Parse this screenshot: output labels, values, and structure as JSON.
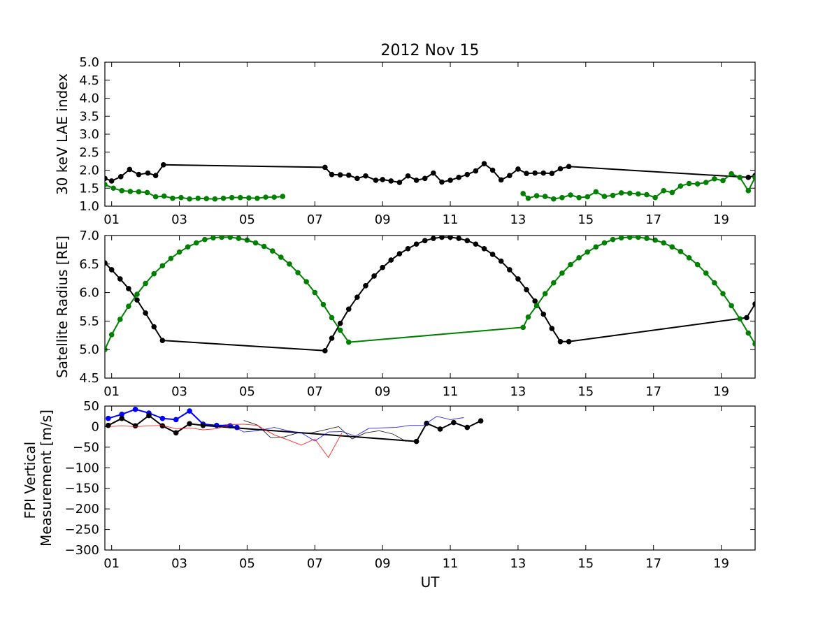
{
  "chart_data": [
    {
      "type": "line",
      "title": "2012 Nov 15",
      "ylabel": "30 keV LAE index",
      "xlabel": "",
      "xlim": [
        0.8,
        20.0
      ],
      "ylim": [
        1.0,
        5.0
      ],
      "yticks": [
        "1.0",
        "1.5",
        "2.0",
        "2.5",
        "3.0",
        "3.5",
        "4.0",
        "4.5",
        "5.0"
      ],
      "xticks": [
        "01",
        "03",
        "05",
        "07",
        "09",
        "11",
        "13",
        "15",
        "17",
        "19"
      ],
      "grid": false,
      "series": [
        {
          "color": "#000000",
          "marker": "circle",
          "x": [
            0.8,
            1.0,
            1.27,
            1.53,
            1.8,
            2.07,
            2.3,
            2.53,
            7.3,
            7.5,
            7.75,
            8.0,
            8.25,
            8.5,
            8.8,
            9.0,
            9.25,
            9.5,
            9.75,
            10.0,
            10.25,
            10.5,
            10.75,
            11.0,
            11.25,
            11.5,
            11.75,
            12.0,
            12.25,
            12.5,
            12.75,
            13.0,
            13.25,
            13.5,
            13.75,
            14.0,
            14.25,
            14.5,
            19.8,
            20.0
          ],
          "y": [
            1.77,
            1.7,
            1.82,
            2.02,
            1.88,
            1.92,
            1.85,
            2.15,
            2.08,
            1.88,
            1.87,
            1.86,
            1.77,
            1.84,
            1.72,
            1.74,
            1.7,
            1.66,
            1.84,
            1.72,
            1.77,
            1.92,
            1.67,
            1.72,
            1.8,
            1.88,
            1.98,
            2.18,
            2.0,
            1.73,
            1.85,
            2.03,
            1.91,
            1.92,
            1.92,
            1.91,
            2.04,
            2.1,
            1.8,
            1.85
          ]
        },
        {
          "color": "#008000",
          "marker": "circle",
          "x": [
            0.8,
            1.05,
            1.3,
            1.55,
            1.8,
            2.05,
            2.3,
            2.55,
            2.8,
            3.05,
            3.3,
            3.55,
            3.8,
            4.05,
            4.3,
            4.55,
            4.8,
            5.05,
            5.3,
            5.55,
            5.8,
            6.05
          ],
          "y": [
            1.6,
            1.5,
            1.43,
            1.41,
            1.4,
            1.38,
            1.26,
            1.28,
            1.22,
            1.24,
            1.2,
            1.22,
            1.21,
            1.2,
            1.22,
            1.24,
            1.24,
            1.23,
            1.22,
            1.25,
            1.25,
            1.27
          ]
        },
        {
          "color": "#008000",
          "marker": "circle",
          "x": [
            13.15,
            13.3,
            13.55,
            13.8,
            14.05,
            14.3,
            14.55,
            14.8,
            15.05,
            15.3,
            15.55,
            15.8,
            16.05,
            16.3,
            16.55,
            16.8,
            17.05,
            17.3,
            17.55,
            17.8,
            18.05,
            18.3,
            18.55,
            18.8,
            19.05,
            19.3,
            19.55,
            19.8,
            20.0
          ],
          "y": [
            1.35,
            1.22,
            1.29,
            1.27,
            1.2,
            1.24,
            1.31,
            1.24,
            1.26,
            1.4,
            1.27,
            1.3,
            1.37,
            1.36,
            1.34,
            1.32,
            1.24,
            1.43,
            1.38,
            1.56,
            1.63,
            1.62,
            1.66,
            1.76,
            1.71,
            1.9,
            1.8,
            1.43,
            1.8
          ]
        }
      ]
    },
    {
      "type": "line",
      "title": "",
      "ylabel": "Satellite Radius [RE]",
      "xlabel": "",
      "xlim": [
        0.8,
        20.0
      ],
      "ylim": [
        4.5,
        7.0
      ],
      "yticks": [
        "4.5",
        "5.0",
        "5.5",
        "6.0",
        "6.5",
        "7.0"
      ],
      "xticks": [
        "01",
        "03",
        "05",
        "07",
        "09",
        "11",
        "13",
        "15",
        "17",
        "19"
      ],
      "grid": false,
      "series": [
        {
          "color": "#000000",
          "marker": "circle",
          "x": [
            0.8,
            1.0,
            1.25,
            1.5,
            1.75,
            2.0,
            2.25,
            2.5,
            7.3,
            7.5,
            7.75,
            8.0,
            8.25,
            8.5,
            8.75,
            9.0,
            9.25,
            9.5,
            9.75,
            10.0,
            10.25,
            10.5,
            10.75,
            11.0,
            11.25,
            11.5,
            11.75,
            12.0,
            12.25,
            12.5,
            12.75,
            13.0,
            13.25,
            13.5,
            13.75,
            14.0,
            14.25,
            14.5,
            19.75,
            20.0
          ],
          "y": [
            6.52,
            6.4,
            6.24,
            6.07,
            5.87,
            5.64,
            5.4,
            5.16,
            4.98,
            5.2,
            5.46,
            5.71,
            5.92,
            6.12,
            6.29,
            6.44,
            6.57,
            6.68,
            6.77,
            6.85,
            6.91,
            6.95,
            6.97,
            6.97,
            6.95,
            6.91,
            6.85,
            6.77,
            6.67,
            6.55,
            6.4,
            6.24,
            6.05,
            5.85,
            5.62,
            5.37,
            5.14,
            5.14,
            5.56,
            5.8
          ]
        },
        {
          "color": "#008000",
          "marker": "circle",
          "x": [
            0.8,
            1.0,
            1.25,
            1.5,
            1.75,
            2.0,
            2.25,
            2.5,
            2.75,
            3.0,
            3.25,
            3.5,
            3.75,
            4.0,
            4.25,
            4.5,
            4.75,
            5.0,
            5.25,
            5.5,
            5.75,
            6.0,
            6.25,
            6.5,
            6.75,
            7.0,
            7.25,
            7.5,
            7.75,
            8.0,
            13.15,
            13.3,
            13.55,
            13.8,
            14.05,
            14.3,
            14.55,
            14.8,
            15.05,
            15.3,
            15.55,
            15.8,
            16.05,
            16.3,
            16.55,
            16.8,
            17.05,
            17.3,
            17.55,
            17.8,
            18.05,
            18.3,
            18.55,
            18.8,
            19.05,
            19.3,
            19.55,
            19.8,
            20.0
          ],
          "y": [
            5.0,
            5.26,
            5.53,
            5.76,
            5.97,
            6.16,
            6.33,
            6.47,
            6.6,
            6.71,
            6.8,
            6.87,
            6.93,
            6.96,
            6.97,
            6.97,
            6.95,
            6.92,
            6.87,
            6.81,
            6.73,
            6.62,
            6.5,
            6.35,
            6.19,
            6.0,
            5.79,
            5.56,
            5.34,
            5.13,
            5.39,
            5.57,
            5.77,
            5.98,
            6.17,
            6.34,
            6.49,
            6.61,
            6.71,
            6.8,
            6.87,
            6.93,
            6.96,
            6.97,
            6.97,
            6.95,
            6.92,
            6.87,
            6.8,
            6.72,
            6.61,
            6.49,
            6.34,
            6.17,
            5.98,
            5.77,
            5.54,
            5.29,
            5.1
          ]
        }
      ]
    },
    {
      "type": "line",
      "title": "",
      "ylabel": "FPI Vertical\nMeasurement [m/s]",
      "xlabel": "UT",
      "xlim": [
        0.8,
        20.0
      ],
      "ylim": [
        -300,
        50
      ],
      "yticks": [
        "50",
        "0",
        "−50",
        "−100",
        "−150",
        "−200",
        "−250",
        "−300"
      ],
      "xticks": [
        "01",
        "03",
        "05",
        "07",
        "09",
        "11",
        "13",
        "15",
        "17",
        "19"
      ],
      "grid": false,
      "series": [
        {
          "color": "#0000ff",
          "marker": "circle",
          "x": [
            0.9,
            1.3,
            1.7,
            2.1,
            2.5,
            2.9,
            3.3,
            3.7,
            4.1,
            4.5,
            4.7
          ],
          "y": [
            20,
            30,
            42,
            33,
            20,
            17,
            38,
            6,
            3,
            2,
            -2
          ]
        },
        {
          "color": "#000000",
          "marker": "circle",
          "x": [
            0.9,
            1.3,
            1.7,
            2.1,
            2.5,
            2.9,
            3.3,
            3.7,
            10.0,
            10.3,
            10.7,
            11.1,
            11.5,
            11.9
          ],
          "y": [
            3,
            20,
            2,
            27,
            2,
            -15,
            7,
            3,
            -36,
            8,
            -6,
            10,
            -2,
            14
          ]
        },
        {
          "color": "#0000ff",
          "marker": "none",
          "x": [
            3.7,
            4.1,
            4.5,
            4.9,
            5.3,
            5.8,
            6.2,
            6.6,
            7.0,
            7.4,
            7.8,
            8.2,
            8.6,
            9.0,
            9.4,
            9.8,
            10.2,
            10.6,
            11.0,
            11.4
          ],
          "y": [
            7,
            3,
            5,
            -13,
            -10,
            -2,
            -10,
            -15,
            -35,
            -13,
            -12,
            -23,
            -4,
            -3,
            -2,
            3,
            3,
            25,
            17,
            22
          ]
        },
        {
          "color": "#000000",
          "marker": "none",
          "x": [
            4.9,
            5.3,
            5.7,
            6.1,
            6.5,
            6.9,
            7.3,
            7.7,
            8.1,
            8.5,
            8.9,
            9.3,
            9.7
          ],
          "y": [
            15,
            4,
            -27,
            -25,
            -15,
            -15,
            -8,
            0,
            -30,
            -15,
            -10,
            -18,
            -36
          ]
        },
        {
          "color": "#ff0000",
          "marker": "none",
          "x": [
            0.9,
            1.3,
            1.7,
            2.1,
            2.5,
            2.9,
            3.3,
            3.7,
            4.1,
            4.5,
            4.9,
            5.3,
            5.8,
            6.2,
            6.6,
            7.0,
            7.4,
            7.8
          ],
          "y": [
            0,
            2,
            0,
            2,
            3,
            -5,
            -3,
            -8,
            -5,
            5,
            6,
            3,
            -20,
            -32,
            -45,
            -30,
            -75,
            -15
          ]
        }
      ]
    }
  ]
}
